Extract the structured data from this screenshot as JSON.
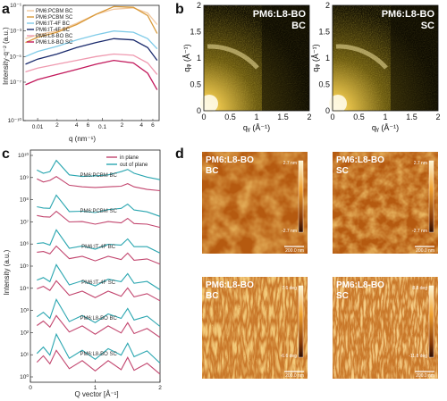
{
  "panel_labels": {
    "a": "a",
    "b": "b",
    "c": "c",
    "d": "d"
  },
  "colors": {
    "pm6_pcbm_bc": "#f2c9a0",
    "pm6_pcbm_sc": "#d99a3a",
    "pm6_it4f_bc": "#7fcbe8",
    "pm6_it4f_sc": "#1a2a6c",
    "pm6_l8bo_bc": "#ef9ab0",
    "pm6_l8bo_sc": "#c2185b",
    "in_plane": "#c2456e",
    "out_of_plane": "#2aa6b0"
  },
  "chart_data": [
    {
      "panel": "a",
      "type": "line",
      "xlabel": "q (nm⁻¹)",
      "ylabel": "Intensity·q⁻² (a.u.)",
      "x_scale": "log",
      "y_scale": "log",
      "xlim": [
        0.006,
        0.75
      ],
      "ylim": [
        -10,
        -1
      ],
      "x_tick_labels": [
        "0.01",
        "0.1"
      ],
      "x_minor_labels": [
        "2",
        "4",
        "6",
        "2",
        "4",
        "6"
      ],
      "y_tick_labels": [
        "10⁻¹",
        "10⁻³",
        "10⁻⁵",
        "10⁻⁷",
        "10⁻¹⁰"
      ],
      "y_tick_values": [
        -1,
        -3,
        -5,
        -7,
        -10
      ],
      "legend": {
        "position": "top-left",
        "entries": [
          "PM6:PCBM BC",
          "PM6:PCBM SC",
          "PM6:IT-4F BC",
          "PM6:IT-4F SC",
          "PM6:L8-BO BC",
          "PM6:L8-BO SC"
        ]
      },
      "series": [
        {
          "name": "PM6:PCBM BC",
          "color_key": "pm6_pcbm_bc",
          "x": [
            0.0065,
            0.01,
            0.02,
            0.04,
            0.08,
            0.15,
            0.3,
            0.5,
            0.7
          ],
          "y": [
            -3.6,
            -3.3,
            -3.0,
            -2.4,
            -1.7,
            -1.3,
            -1.2,
            -1.6,
            -2.5
          ]
        },
        {
          "name": "PM6:PCBM SC",
          "color_key": "pm6_pcbm_sc",
          "x": [
            0.0065,
            0.01,
            0.02,
            0.04,
            0.08,
            0.15,
            0.3,
            0.5,
            0.7
          ],
          "y": [
            -3.9,
            -3.5,
            -3.1,
            -2.5,
            -1.7,
            -1.1,
            -1.15,
            -1.8,
            -3.2
          ]
        },
        {
          "name": "PM6:IT-4F BC",
          "color_key": "pm6_it4f_bc",
          "x": [
            0.0065,
            0.01,
            0.02,
            0.04,
            0.08,
            0.15,
            0.3,
            0.5,
            0.7
          ],
          "y": [
            -5.0,
            -4.6,
            -4.2,
            -3.7,
            -3.3,
            -3.0,
            -3.1,
            -3.6,
            -4.4
          ]
        },
        {
          "name": "PM6:IT-4F SC",
          "color_key": "pm6_it4f_sc",
          "x": [
            0.0065,
            0.01,
            0.02,
            0.04,
            0.08,
            0.15,
            0.3,
            0.5,
            0.7
          ],
          "y": [
            -5.6,
            -5.2,
            -4.8,
            -4.3,
            -3.9,
            -3.6,
            -3.7,
            -4.3,
            -5.3
          ]
        },
        {
          "name": "PM6:L8-BO BC",
          "color_key": "pm6_l8bo_bc",
          "x": [
            0.0065,
            0.01,
            0.02,
            0.04,
            0.08,
            0.15,
            0.3,
            0.5,
            0.7
          ],
          "y": [
            -6.2,
            -5.9,
            -5.6,
            -5.3,
            -5.0,
            -4.8,
            -4.9,
            -5.5,
            -6.4
          ]
        },
        {
          "name": "PM6:L8-BO SC",
          "color_key": "pm6_l8bo_sc",
          "x": [
            0.0065,
            0.01,
            0.02,
            0.04,
            0.08,
            0.15,
            0.3,
            0.5,
            0.7
          ],
          "y": [
            -7.2,
            -6.8,
            -6.4,
            -6.0,
            -5.6,
            -5.3,
            -5.5,
            -6.3,
            -7.6
          ]
        }
      ]
    },
    {
      "panel": "c",
      "type": "line",
      "xlabel": "Q vector [Å⁻¹]",
      "ylabel": "Intensity (a.u.)",
      "xlim": [
        0,
        2
      ],
      "x_tick_labels": [
        "0",
        "1",
        "2"
      ],
      "y_tick_labels": [
        "10¹⁰",
        "10⁹",
        "10⁸",
        "10⁷",
        "10⁶",
        "10⁵",
        "10⁴",
        "10³",
        "10²",
        "10¹",
        "10⁰"
      ],
      "legend": {
        "position": "top-right",
        "entries": [
          "in plane",
          "out of plane"
        ]
      },
      "groups": [
        "PM6:PCBM BC",
        "PM6:PCBM SC",
        "PM6:IT-4F BC",
        "PM6:IT-4F SC",
        "PM6:L8-BO BC",
        "PM6:L8-BO SC"
      ],
      "series": [
        {
          "name": "in plane",
          "color_key": "in_plane",
          "x": [
            0.1,
            0.2,
            0.3,
            0.4,
            0.6,
            0.8,
            1.0,
            1.2,
            1.4,
            1.5,
            1.6,
            1.8,
            2.0
          ],
          "y": [
            0.55,
            0.45,
            0.5,
            0.62,
            0.35,
            0.3,
            0.28,
            0.3,
            0.32,
            0.4,
            0.3,
            0.22,
            0.18
          ]
        },
        {
          "name": "out of plane",
          "color_key": "out_of_plane",
          "x": [
            0.1,
            0.2,
            0.3,
            0.4,
            0.6,
            0.8,
            1.0,
            1.2,
            1.4,
            1.5,
            1.6,
            1.8,
            2.0
          ],
          "y": [
            0.6,
            0.5,
            0.55,
            0.9,
            0.45,
            0.4,
            0.42,
            0.45,
            0.55,
            0.62,
            0.5,
            0.38,
            0.3
          ]
        }
      ]
    }
  ],
  "panel_b": {
    "images": [
      {
        "title_line1": "PM6:L8-BO",
        "title_line2": "BC"
      },
      {
        "title_line1": "PM6:L8-BO",
        "title_line2": "SC"
      }
    ],
    "x_tick_labels": [
      "0",
      "0.5",
      "1",
      "1.5",
      "2"
    ],
    "y_tick_labels": [
      "2",
      "1.5",
      "1",
      "0.5",
      "0"
    ],
    "xlabel": "qᵧ (Å⁻¹)",
    "ylabel": "qᵩ (Å⁻¹)"
  },
  "panel_d": {
    "images": [
      {
        "title_line1": "PM6:L8-BO",
        "title_line2": "BC",
        "cb_top": "2.7 nm",
        "cb_bottom": "-2.7 nm",
        "scale": "200.0 nm",
        "kind": "height"
      },
      {
        "title_line1": "PM6:L8-BO",
        "title_line2": "SC",
        "cb_top": "2.7 nm",
        "cb_bottom": "-2.7 nm",
        "scale": "200.0 nm",
        "kind": "height"
      },
      {
        "title_line1": "PM6:L8-BO",
        "title_line2": "BC",
        "cb_top": "7.6 deg",
        "cb_bottom": "-6.6 deg",
        "scale": "200.0 nm",
        "kind": "phase"
      },
      {
        "title_line1": "PM6:L8-BO",
        "title_line2": "SC",
        "cb_top": "8.8 deg",
        "cb_bottom": "-11.8 deg",
        "scale": "200.0 nm",
        "kind": "phase"
      }
    ]
  }
}
